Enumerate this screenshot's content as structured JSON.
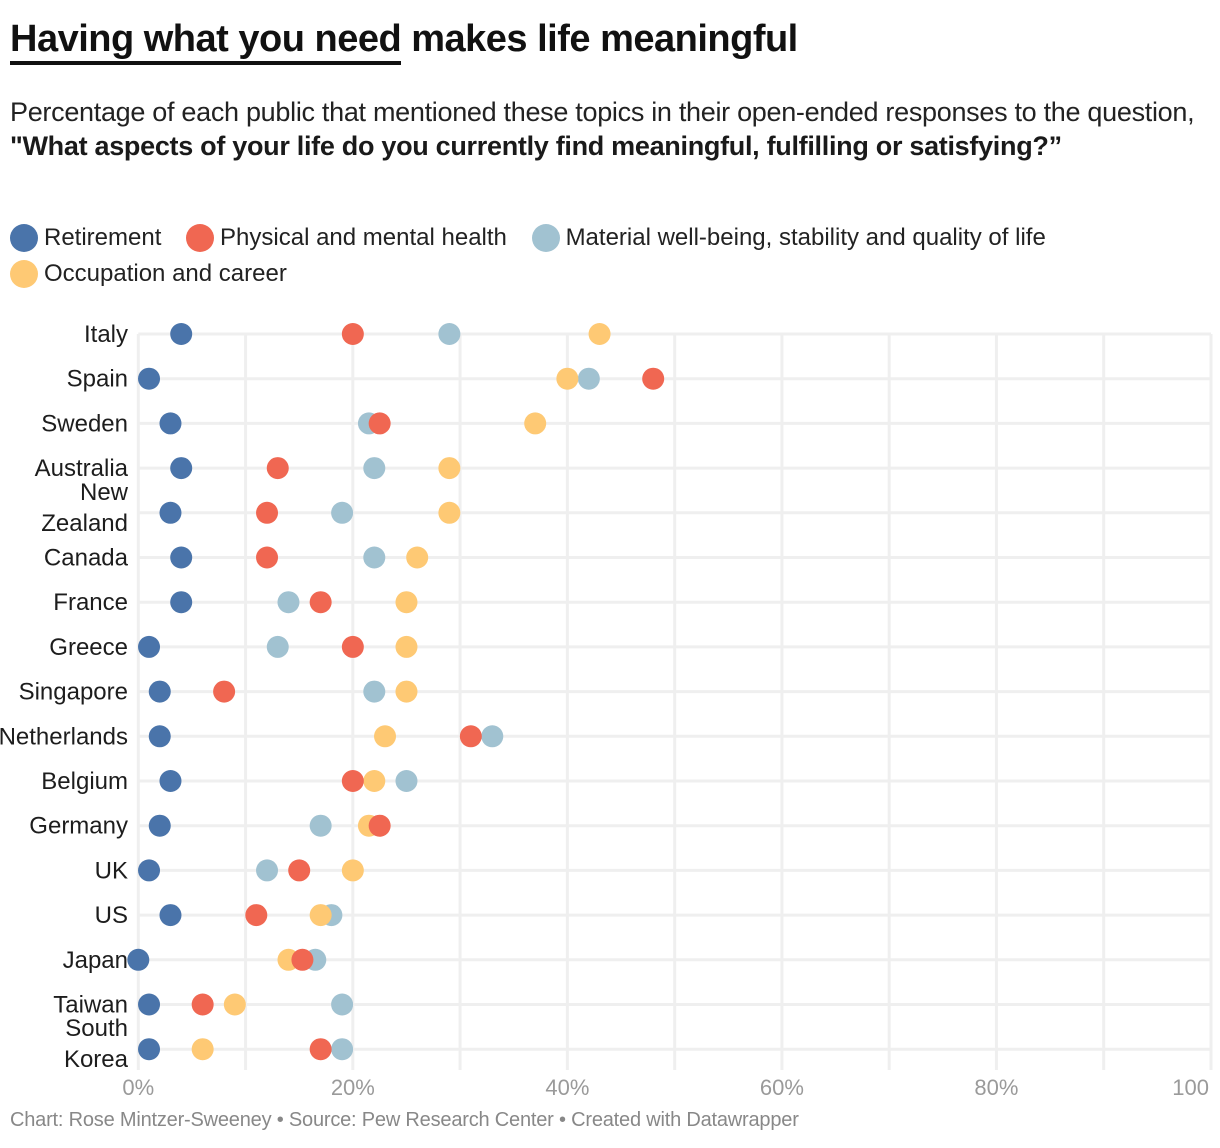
{
  "title": {
    "underlined": "Having what you need",
    "rest": " makes life meaningful"
  },
  "subtitle": {
    "plain": "Percentage of each public that mentioned these topics in their open-ended responses to the question, ",
    "bold": "\"What aspects of your life do you currently find meaningful, fulfilling or satisfying?”"
  },
  "legend": [
    {
      "key": "retirement",
      "label": "Retirement",
      "color": "#4a74aa"
    },
    {
      "key": "health",
      "label": "Physical and mental health",
      "color": "#f06752"
    },
    {
      "key": "material",
      "label": "Material well-being, stability and quality of life",
      "color": "#a1c2d1"
    },
    {
      "key": "career",
      "label": "Occupation and career",
      "color": "#fec974"
    }
  ],
  "footer": "Chart: Rose Mintzer-Sweeney • Source: Pew Research Center • Created with Datawrapper",
  "chart_data": {
    "type": "scatter",
    "subtype": "dot-plot",
    "title": "Having what you need makes life meaningful",
    "xlabel": "",
    "ylabel": "",
    "xlim": [
      0,
      100
    ],
    "x_ticks": [
      0,
      20,
      40,
      60,
      80,
      100
    ],
    "x_tick_labels": [
      "0%",
      "20%",
      "40%",
      "60%",
      "80%",
      "100"
    ],
    "grid": true,
    "legend_position": "top-left",
    "categories": [
      [
        "Italy"
      ],
      [
        "Spain"
      ],
      [
        "Sweden"
      ],
      [
        "Australia"
      ],
      [
        "New",
        "Zealand"
      ],
      [
        "Canada"
      ],
      [
        "France"
      ],
      [
        "Greece"
      ],
      [
        "Singapore"
      ],
      [
        "Netherlands"
      ],
      [
        "Belgium"
      ],
      [
        "Germany"
      ],
      [
        "UK"
      ],
      [
        "US"
      ],
      [
        "Japan"
      ],
      [
        "Taiwan"
      ],
      [
        "South",
        "Korea"
      ]
    ],
    "series": [
      {
        "name": "Retirement",
        "key": "retirement",
        "values": [
          4,
          1,
          3,
          4,
          3,
          4,
          4,
          1,
          2,
          2,
          3,
          2,
          1,
          3,
          0,
          1,
          1
        ]
      },
      {
        "name": "Material well-being, stability and quality of life",
        "key": "material",
        "values": [
          29,
          42,
          21.5,
          22,
          19,
          22,
          14,
          13,
          22,
          33,
          25,
          17,
          12,
          18,
          16.5,
          19,
          19
        ]
      },
      {
        "name": "Occupation and career",
        "key": "career",
        "values": [
          43,
          40,
          37,
          29,
          29,
          26,
          25,
          25,
          25,
          23,
          22,
          21.5,
          20,
          17,
          14,
          9,
          6
        ]
      },
      {
        "name": "Physical and mental health",
        "key": "health",
        "values": [
          20,
          48,
          22.5,
          13,
          12,
          12,
          17,
          20,
          8,
          31,
          20,
          22.5,
          15,
          11,
          15.3,
          6,
          17
        ]
      }
    ]
  }
}
